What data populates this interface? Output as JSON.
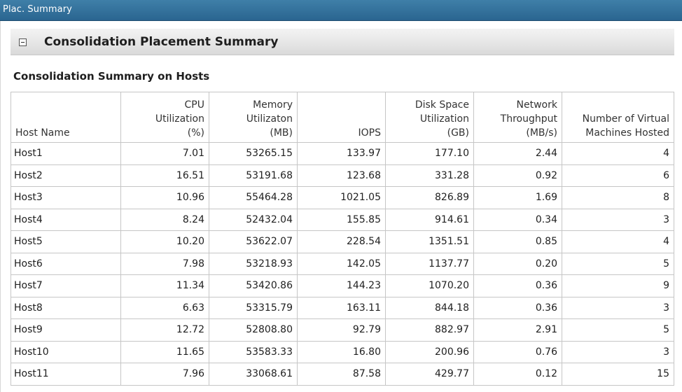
{
  "window": {
    "title": "Plac. Summary"
  },
  "section": {
    "title": "Consolidation Placement Summary",
    "subheading": "Consolidation Summary on Hosts"
  },
  "table": {
    "columns": [
      {
        "key": "name",
        "lines": [
          "Host Name"
        ]
      },
      {
        "key": "cpu",
        "lines": [
          "CPU",
          "Utilization",
          "(%)"
        ]
      },
      {
        "key": "mem",
        "lines": [
          "Memory",
          "Utilizaton",
          "(MB)"
        ]
      },
      {
        "key": "iops",
        "lines": [
          "IOPS"
        ]
      },
      {
        "key": "disk",
        "lines": [
          "Disk Space",
          "Utilization",
          "(GB)"
        ]
      },
      {
        "key": "net",
        "lines": [
          "Network",
          "Throughput",
          "(MB/s)"
        ]
      },
      {
        "key": "vms",
        "lines": [
          "Number of Virtual",
          "Machines Hosted"
        ]
      }
    ],
    "rows": [
      {
        "name": "Host1",
        "cpu": "7.01",
        "mem": "53265.15",
        "iops": "133.97",
        "disk": "177.10",
        "net": "2.44",
        "vms": "4"
      },
      {
        "name": "Host2",
        "cpu": "16.51",
        "mem": "53191.68",
        "iops": "123.68",
        "disk": "331.28",
        "net": "0.92",
        "vms": "6"
      },
      {
        "name": "Host3",
        "cpu": "10.96",
        "mem": "55464.28",
        "iops": "1021.05",
        "disk": "826.89",
        "net": "1.69",
        "vms": "8"
      },
      {
        "name": "Host4",
        "cpu": "8.24",
        "mem": "52432.04",
        "iops": "155.85",
        "disk": "914.61",
        "net": "0.34",
        "vms": "3"
      },
      {
        "name": "Host5",
        "cpu": "10.20",
        "mem": "53622.07",
        "iops": "228.54",
        "disk": "1351.51",
        "net": "0.85",
        "vms": "4"
      },
      {
        "name": "Host6",
        "cpu": "7.98",
        "mem": "53218.93",
        "iops": "142.05",
        "disk": "1137.77",
        "net": "0.20",
        "vms": "5"
      },
      {
        "name": "Host7",
        "cpu": "11.34",
        "mem": "53420.86",
        "iops": "144.23",
        "disk": "1070.20",
        "net": "0.36",
        "vms": "9"
      },
      {
        "name": "Host8",
        "cpu": "6.63",
        "mem": "53315.79",
        "iops": "163.11",
        "disk": "844.18",
        "net": "0.36",
        "vms": "3"
      },
      {
        "name": "Host9",
        "cpu": "12.72",
        "mem": "52808.80",
        "iops": "92.79",
        "disk": "882.97",
        "net": "2.91",
        "vms": "5"
      },
      {
        "name": "Host10",
        "cpu": "11.65",
        "mem": "53583.33",
        "iops": "16.80",
        "disk": "200.96",
        "net": "0.76",
        "vms": "3"
      },
      {
        "name": "Host11",
        "cpu": "7.96",
        "mem": "33068.61",
        "iops": "87.58",
        "disk": "429.77",
        "net": "0.12",
        "vms": "15"
      }
    ]
  }
}
